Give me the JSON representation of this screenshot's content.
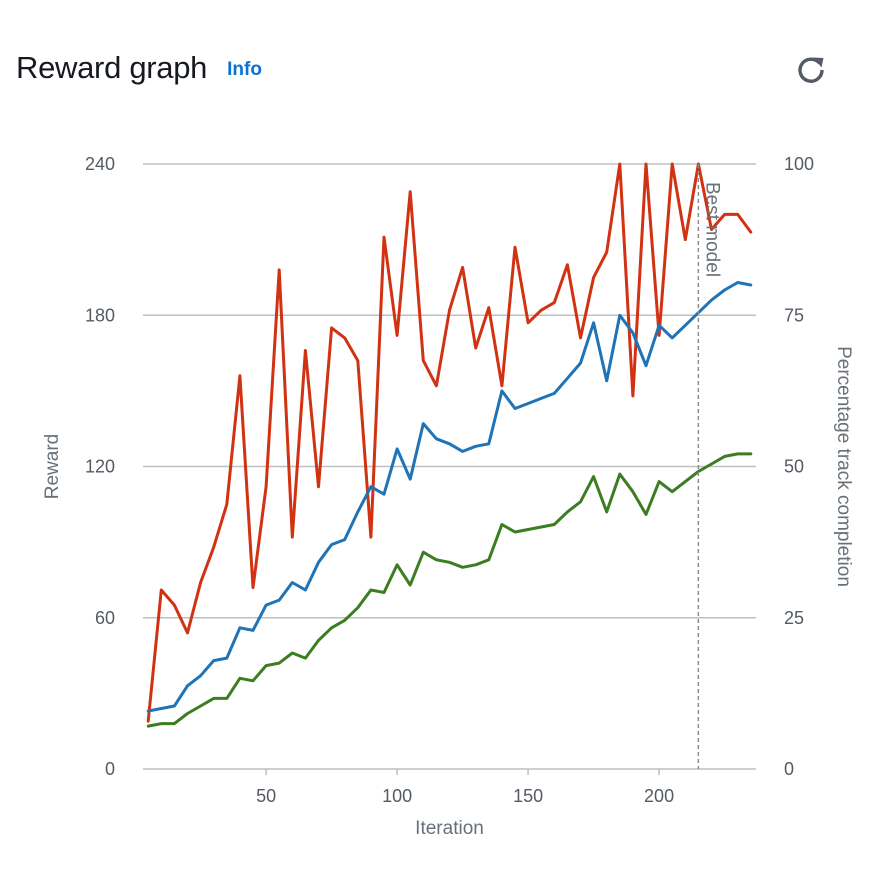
{
  "header": {
    "title": "Reward graph",
    "info_label": "Info",
    "refresh_icon": "refresh-icon"
  },
  "chart_data": {
    "type": "line",
    "xlabel": "Iteration",
    "ylabel": "Reward",
    "y2label": "Percentage track completion",
    "xlim": [
      3,
      237
    ],
    "ylim": [
      0,
      240
    ],
    "y2lim": [
      0,
      100
    ],
    "xticks": [
      50,
      100,
      150,
      200
    ],
    "yticks": [
      0,
      60,
      120,
      180,
      240
    ],
    "y2ticks": [
      0,
      25,
      50,
      75,
      100
    ],
    "grid": true,
    "annotation": {
      "label": "Best model",
      "x": 215
    },
    "series": [
      {
        "color": "#d13212",
        "axis": "left",
        "x": [
          5,
          10,
          15,
          20,
          25,
          30,
          35,
          40,
          45,
          50,
          55,
          60,
          65,
          70,
          75,
          80,
          85,
          90,
          95,
          100,
          105,
          110,
          115,
          120,
          125,
          130,
          135,
          140,
          145,
          150,
          155,
          160,
          165,
          170,
          175,
          180,
          185,
          190,
          195,
          200,
          205,
          210,
          215,
          220,
          225,
          230,
          235
        ],
        "values": [
          19,
          71,
          65,
          54,
          74,
          88,
          105,
          156,
          72,
          112,
          198,
          92,
          166,
          112,
          175,
          171,
          162,
          92,
          211,
          172,
          229,
          162,
          152,
          182,
          199,
          167,
          183,
          152,
          207,
          177,
          182,
          185,
          200,
          171,
          195,
          205,
          240,
          148,
          240,
          172,
          240,
          210,
          240,
          214,
          220,
          220,
          213
        ]
      },
      {
        "color": "#1f73b7",
        "axis": "left",
        "x": [
          5,
          10,
          15,
          20,
          25,
          30,
          35,
          40,
          45,
          50,
          55,
          60,
          65,
          70,
          75,
          80,
          85,
          90,
          95,
          100,
          105,
          110,
          115,
          120,
          125,
          130,
          135,
          140,
          145,
          150,
          155,
          160,
          165,
          170,
          175,
          180,
          185,
          190,
          195,
          200,
          205,
          210,
          215,
          220,
          225,
          230,
          235
        ],
        "values": [
          23,
          24,
          25,
          33,
          37,
          43,
          44,
          56,
          55,
          65,
          67,
          74,
          71,
          82,
          89,
          91,
          102,
          112,
          109,
          127,
          115,
          137,
          131,
          129,
          126,
          128,
          129,
          150,
          143,
          145,
          147,
          149,
          155,
          161,
          177,
          154,
          180,
          173,
          160,
          176,
          171,
          176,
          181,
          186,
          190,
          193,
          192
        ]
      },
      {
        "color": "#3c7d22",
        "axis": "left",
        "x": [
          5,
          10,
          15,
          20,
          25,
          30,
          35,
          40,
          45,
          50,
          55,
          60,
          65,
          70,
          75,
          80,
          85,
          90,
          95,
          100,
          105,
          110,
          115,
          120,
          125,
          130,
          135,
          140,
          145,
          150,
          155,
          160,
          165,
          170,
          175,
          180,
          185,
          190,
          195,
          200,
          205,
          210,
          215,
          220,
          225,
          230,
          235
        ],
        "values": [
          17,
          18,
          18,
          22,
          25,
          28,
          28,
          36,
          35,
          41,
          42,
          46,
          44,
          51,
          56,
          59,
          64,
          71,
          70,
          81,
          73,
          86,
          83,
          82,
          80,
          81,
          83,
          97,
          94,
          95,
          96,
          97,
          102,
          106,
          116,
          102,
          117,
          110,
          101,
          114,
          110,
          114,
          118,
          121,
          124,
          125,
          125
        ]
      }
    ]
  }
}
